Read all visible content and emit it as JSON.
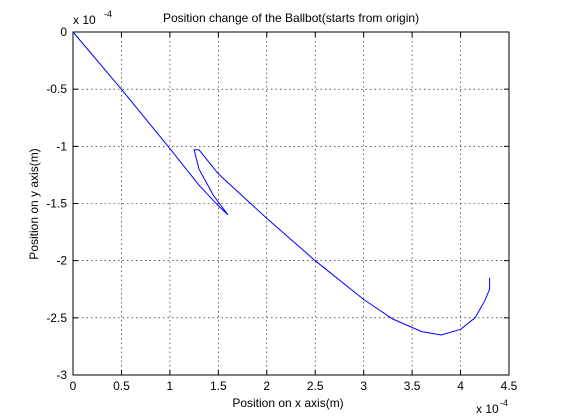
{
  "chart_data": {
    "type": "line",
    "title": "Position change of the Ballbot(starts from origin)",
    "xlabel": "Position on x axis(m)",
    "ylabel": "Position on y axis(m)",
    "xlim": [
      0,
      4.5
    ],
    "ylim": [
      -3,
      0
    ],
    "x_scale_label": "x 10",
    "x_scale_exp": "-4",
    "y_scale_label": "x 10",
    "y_scale_exp": "-4",
    "x_ticks": [
      0,
      0.5,
      1,
      1.5,
      2,
      2.5,
      3,
      3.5,
      4,
      4.5
    ],
    "x_tick_labels": [
      "0",
      "0.5",
      "1",
      "1.5",
      "2",
      "2.5",
      "3",
      "3.5",
      "4",
      "4.5"
    ],
    "y_ticks": [
      0,
      -0.5,
      -1,
      -1.5,
      -2,
      -2.5,
      -3
    ],
    "y_tick_labels": [
      "0",
      "-0.5",
      "-1",
      "-1.5",
      "-2",
      "-2.5",
      "-3"
    ],
    "grid": true,
    "series": [
      {
        "color": "#0000ff",
        "x": [
          0,
          0.5,
          1.0,
          1.3,
          1.5,
          1.6,
          1.45,
          1.3,
          1.25,
          1.3,
          1.5,
          2.0,
          2.5,
          3.0,
          3.3,
          3.6,
          3.8,
          4.0,
          4.15,
          4.25,
          4.3,
          4.3
        ],
        "y": [
          0,
          -0.5,
          -1.02,
          -1.34,
          -1.52,
          -1.6,
          -1.43,
          -1.2,
          -1.03,
          -1.03,
          -1.24,
          -1.63,
          -2.0,
          -2.34,
          -2.51,
          -2.62,
          -2.65,
          -2.6,
          -2.5,
          -2.35,
          -2.25,
          -2.15
        ]
      }
    ]
  }
}
